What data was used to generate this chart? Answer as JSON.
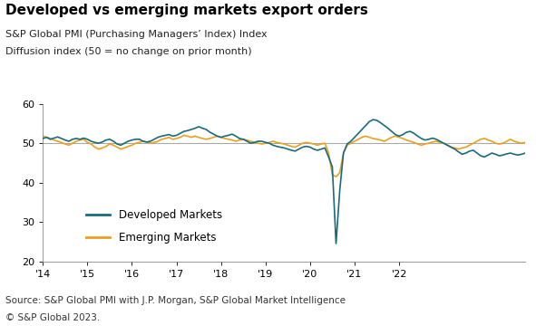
{
  "title": "Developed vs emerging markets export orders",
  "subtitle_line1": "S&P Global PMI (Purchasing Managers’ Index) Index",
  "subtitle_line2": "Diffusion index (50 = no change on prior month)",
  "source_line1": "Source: S&P Global PMI with J.P. Morgan, S&P Global Market Intelligence",
  "source_line2": "© S&P Global 2023.",
  "developed_color": "#1a6b7a",
  "emerging_color": "#e8a020",
  "reference_line": 50,
  "reference_color": "#aaaaaa",
  "ylim": [
    20,
    60
  ],
  "yticks": [
    20,
    30,
    40,
    50,
    60
  ],
  "title_fontsize": 11,
  "subtitle_fontsize": 8,
  "axis_fontsize": 8,
  "legend_fontsize": 8.5,
  "source_fontsize": 7.5,
  "developed": [
    51.2,
    51.5,
    51.0,
    51.3,
    51.6,
    51.2,
    50.8,
    50.5,
    51.0,
    51.2,
    51.0,
    51.3,
    51.0,
    50.5,
    50.2,
    50.0,
    50.3,
    50.8,
    51.0,
    50.5,
    49.8,
    49.5,
    50.0,
    50.5,
    50.8,
    51.0,
    51.0,
    50.5,
    50.3,
    50.5,
    51.0,
    51.5,
    51.8,
    52.0,
    52.2,
    51.8,
    52.0,
    52.5,
    53.0,
    53.2,
    53.5,
    53.8,
    54.2,
    53.8,
    53.5,
    52.8,
    52.3,
    51.8,
    51.5,
    51.8,
    52.0,
    52.3,
    51.8,
    51.2,
    51.0,
    50.5,
    50.0,
    50.2,
    50.5,
    50.5,
    50.2,
    50.0,
    49.5,
    49.2,
    49.0,
    48.8,
    48.5,
    48.2,
    48.0,
    48.5,
    49.0,
    49.2,
    49.0,
    48.5,
    48.2,
    48.5,
    48.8,
    46.5,
    44.0,
    24.5,
    38.0,
    47.5,
    49.8,
    50.5,
    51.5,
    52.5,
    53.5,
    54.5,
    55.5,
    56.0,
    55.8,
    55.2,
    54.5,
    53.8,
    53.0,
    52.2,
    51.8,
    52.2,
    52.8,
    53.0,
    52.5,
    51.8,
    51.2,
    50.8,
    51.0,
    51.3,
    51.0,
    50.5,
    50.0,
    49.5,
    49.0,
    48.5,
    47.8,
    47.2,
    47.5,
    48.0,
    48.2,
    47.5,
    46.8,
    46.5,
    47.0,
    47.5,
    47.2,
    46.8,
    47.0,
    47.3,
    47.5,
    47.2,
    47.0,
    47.2,
    47.5
  ],
  "emerging": [
    51.8,
    51.5,
    51.2,
    50.8,
    50.5,
    50.2,
    49.8,
    49.5,
    50.0,
    50.5,
    50.8,
    51.0,
    50.2,
    49.8,
    49.0,
    48.5,
    48.8,
    49.2,
    49.8,
    49.5,
    49.0,
    48.5,
    48.8,
    49.2,
    49.5,
    50.0,
    50.2,
    50.5,
    50.3,
    50.0,
    50.2,
    50.5,
    51.0,
    51.2,
    51.5,
    51.0,
    51.2,
    51.5,
    52.0,
    51.8,
    51.5,
    51.8,
    51.5,
    51.2,
    51.0,
    51.2,
    51.5,
    51.8,
    51.5,
    51.2,
    51.0,
    50.8,
    50.5,
    50.8,
    51.0,
    50.8,
    50.5,
    50.2,
    50.0,
    49.8,
    50.0,
    50.2,
    50.5,
    50.2,
    50.0,
    49.8,
    49.5,
    49.2,
    49.0,
    49.5,
    50.0,
    50.2,
    50.0,
    49.8,
    49.5,
    49.8,
    50.0,
    47.5,
    42.0,
    41.5,
    42.5,
    47.5,
    49.5,
    50.0,
    50.5,
    51.0,
    51.5,
    51.8,
    51.5,
    51.2,
    51.0,
    50.8,
    50.5,
    51.0,
    51.5,
    51.8,
    51.5,
    51.2,
    50.8,
    50.5,
    50.2,
    49.8,
    49.5,
    49.8,
    50.0,
    50.3,
    50.5,
    50.2,
    50.0,
    49.5,
    49.0,
    48.8,
    48.5,
    48.8,
    49.0,
    49.5,
    50.0,
    50.5,
    51.0,
    51.2,
    50.8,
    50.5,
    50.0,
    49.8,
    50.0,
    50.5,
    51.0,
    50.5,
    50.2,
    50.0,
    50.2
  ],
  "x_tick_years": [
    "'14",
    "'15",
    "'16",
    "'17",
    "'18",
    "'19",
    "'20",
    "'21",
    "'22"
  ],
  "x_tick_positions": [
    0,
    12,
    24,
    36,
    48,
    60,
    72,
    84,
    96
  ]
}
